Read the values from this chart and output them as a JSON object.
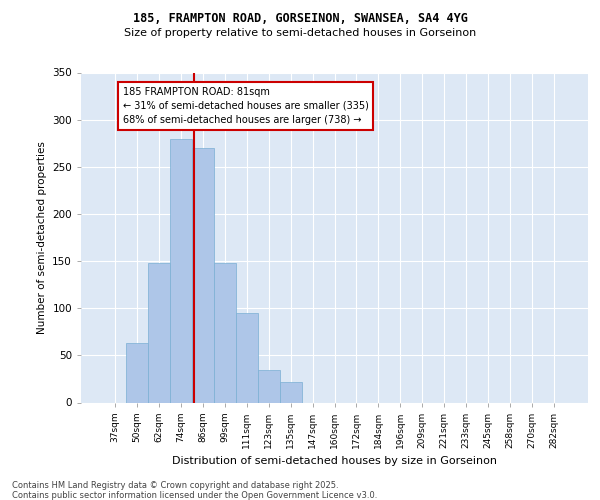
{
  "title1": "185, FRAMPTON ROAD, GORSEINON, SWANSEA, SA4 4YG",
  "title2": "Size of property relative to semi-detached houses in Gorseinon",
  "xlabel": "Distribution of semi-detached houses by size in Gorseinon",
  "ylabel": "Number of semi-detached properties",
  "categories": [
    "37sqm",
    "50sqm",
    "62sqm",
    "74sqm",
    "86sqm",
    "99sqm",
    "111sqm",
    "123sqm",
    "135sqm",
    "147sqm",
    "160sqm",
    "172sqm",
    "184sqm",
    "196sqm",
    "209sqm",
    "221sqm",
    "233sqm",
    "245sqm",
    "258sqm",
    "270sqm",
    "282sqm"
  ],
  "values": [
    0,
    63,
    148,
    280,
    270,
    148,
    95,
    35,
    22,
    0,
    0,
    0,
    0,
    0,
    0,
    0,
    0,
    0,
    0,
    0,
    0
  ],
  "bar_color": "#aec6e8",
  "bar_edge_color": "#7aafd4",
  "property_sqm": "81sqm",
  "pct_smaller": 31,
  "pct_larger": 68,
  "count_smaller": 335,
  "count_larger": 738,
  "annotation_box_color": "#ffffff",
  "annotation_box_edge": "#cc0000",
  "line_color": "#cc0000",
  "plot_bg_color": "#dde8f5",
  "fig_bg_color": "#ffffff",
  "footer_text": "Contains HM Land Registry data © Crown copyright and database right 2025.\nContains public sector information licensed under the Open Government Licence v3.0.",
  "ylim": [
    0,
    350
  ],
  "yticks": [
    0,
    50,
    100,
    150,
    200,
    250,
    300,
    350
  ]
}
